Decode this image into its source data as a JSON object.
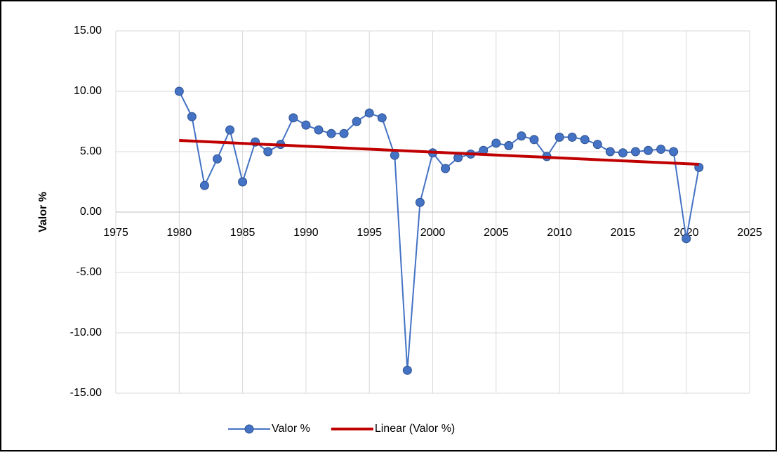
{
  "chart_data": {
    "type": "line",
    "y_label": "Valor %",
    "x": [
      1980,
      1981,
      1982,
      1983,
      1984,
      1985,
      1986,
      1987,
      1988,
      1989,
      1990,
      1991,
      1992,
      1993,
      1994,
      1995,
      1996,
      1997,
      1998,
      1999,
      2000,
      2001,
      2002,
      2003,
      2004,
      2005,
      2006,
      2007,
      2008,
      2009,
      2010,
      2011,
      2012,
      2013,
      2014,
      2015,
      2016,
      2017,
      2018,
      2019,
      2020,
      2021
    ],
    "series": [
      {
        "name": "Valor %",
        "color": "#4472c4",
        "marker": true,
        "values": [
          10.0,
          7.9,
          2.2,
          4.4,
          6.8,
          2.5,
          5.8,
          5.0,
          5.6,
          7.8,
          7.2,
          6.8,
          6.5,
          6.5,
          7.5,
          8.2,
          7.8,
          4.7,
          -13.1,
          0.8,
          4.9,
          3.6,
          4.5,
          4.8,
          5.1,
          5.7,
          5.5,
          6.3,
          6.0,
          4.6,
          6.2,
          6.2,
          6.0,
          5.6,
          5.0,
          4.9,
          5.0,
          5.1,
          5.2,
          5.0,
          -2.2,
          3.7
        ]
      },
      {
        "name": "Linear (Valor %)",
        "color": "#c00000",
        "marker": false,
        "x": [
          1980,
          2021
        ],
        "values": [
          5.93,
          3.95
        ]
      }
    ],
    "xlim": [
      1975,
      2025
    ],
    "xticks": [
      1975,
      1980,
      1985,
      1990,
      1995,
      2000,
      2005,
      2010,
      2015,
      2020,
      2025
    ],
    "ylim": [
      -15,
      15
    ],
    "yticks": [
      {
        "value": -15,
        "label": "-15.00"
      },
      {
        "value": -10,
        "label": "-10.00"
      },
      {
        "value": -5,
        "label": "-5.00"
      },
      {
        "value": 0,
        "label": "0.00"
      },
      {
        "value": 5,
        "label": "5.00"
      },
      {
        "value": 10,
        "label": "10.00"
      },
      {
        "value": 15,
        "label": "15.00"
      }
    ],
    "grid": true,
    "legend": "bottom"
  }
}
